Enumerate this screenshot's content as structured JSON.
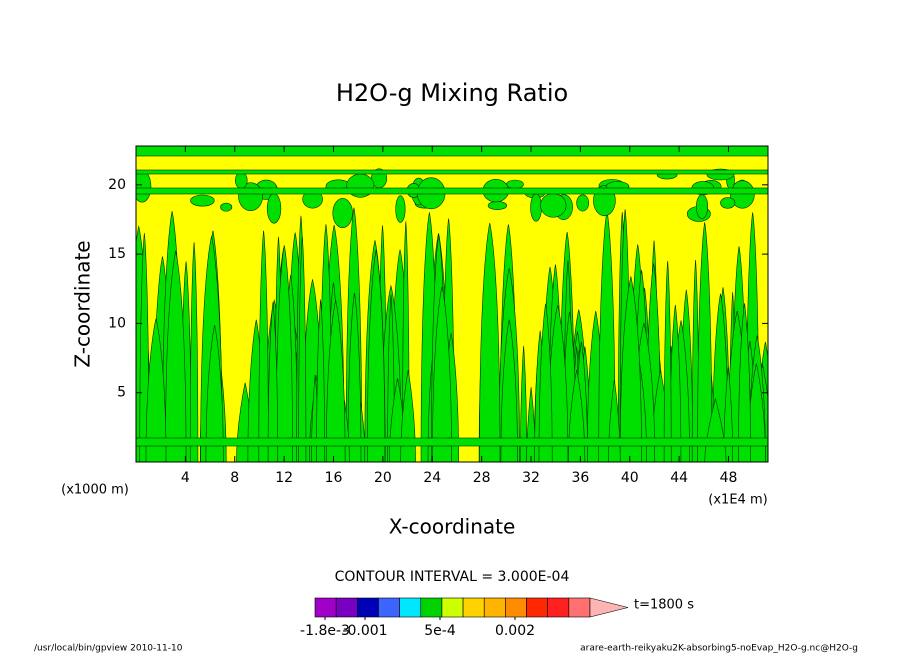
{
  "chart_data": {
    "type": "contour",
    "title": "H2O-g Mixing Ratio",
    "xlabel": "X-coordinate",
    "ylabel": "Z-coordinate",
    "x_unit_note": "(x1000 m)",
    "x_scale_note": "(x1E4 m)",
    "xlim": [
      0,
      51.2
    ],
    "ylim": [
      0,
      22.8
    ],
    "xticks": [
      4,
      8,
      12,
      16,
      20,
      24,
      28,
      32,
      36,
      40,
      44,
      48
    ],
    "yticks": [
      5,
      10,
      15,
      20
    ],
    "field_colors": [
      "#ffff00",
      "#00e000"
    ],
    "contour_interval_text": "CONTOUR INTERVAL = 3.000E-04",
    "colorbar": {
      "lim": [
        -0.002,
        0.0035
      ],
      "colors": [
        "#a000c8",
        "#7800c0",
        "#0000b4",
        "#3c64ff",
        "#00e6ff",
        "#00d200",
        "#ccff00",
        "#ffd200",
        "#ffb400",
        "#ff8c00",
        "#ff2800",
        "#ff2020",
        "#ff7070"
      ],
      "extend_color": "#ffb4b4",
      "ticks": [
        {
          "value": -0.0018,
          "label": "-1.8e-3"
        },
        {
          "value": -0.001,
          "label": "-0.001"
        },
        {
          "value": 0.0005,
          "label": "5e-4"
        },
        {
          "value": 0.002,
          "label": "0.002"
        }
      ]
    },
    "time_label": "t=1800 s",
    "footer_left": "/usr/local/bin/gpview  2010-11-10",
    "footer_right": "arare-earth-reikyaku2K-absorbing5-noEvap_H2O-g.nc@H2O-g"
  }
}
